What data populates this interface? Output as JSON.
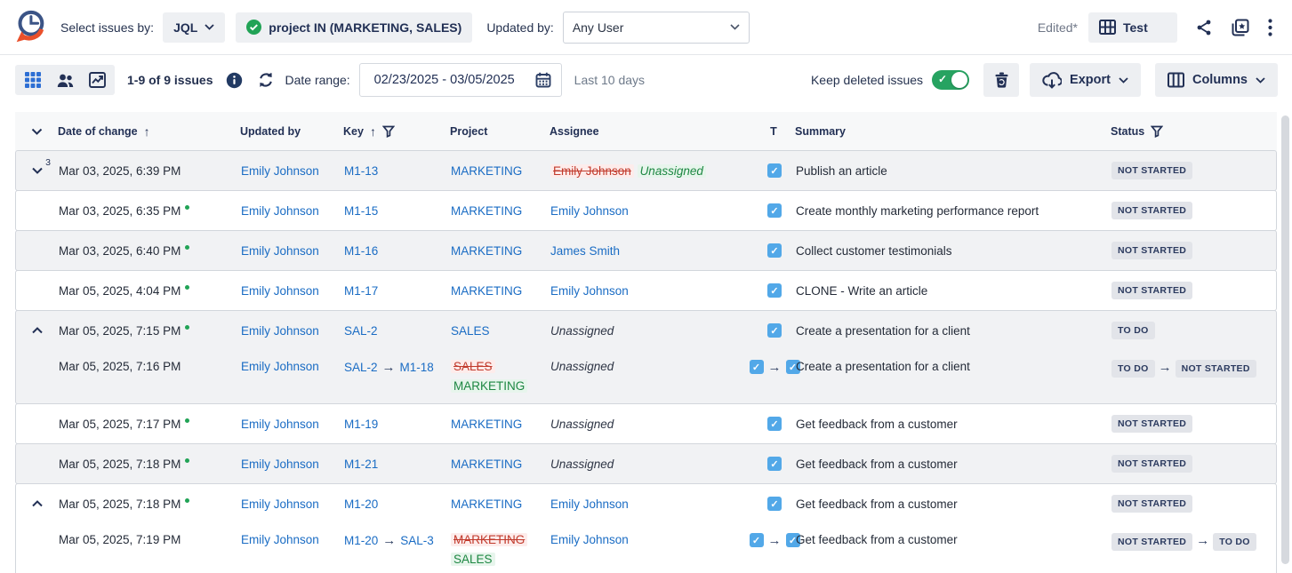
{
  "header": {
    "select_issues_by_label": "Select issues by:",
    "jql_label": "JQL",
    "jql_query": "project IN (MARKETING, SALES)",
    "updated_by_label": "Updated by:",
    "updated_by_value": "Any User",
    "edited_label": "Edited*",
    "report_name": "Test"
  },
  "toolbar": {
    "issues_count": "1-9 of 9 issues",
    "date_range_label": "Date range:",
    "date_range_value": "02/23/2025 - 03/05/2025",
    "date_range_hint": "Last 10 days",
    "keep_deleted_label": "Keep deleted issues",
    "keep_deleted_on": true,
    "export_label": "Export",
    "columns_label": "Columns"
  },
  "colors": {
    "link_blue": "#1a6cc4",
    "added_green": "#1d8742",
    "removed_red": "#c13a2c",
    "toggle_green": "#27a361",
    "task_type_blue": "#52a8e8",
    "navy_text": "#223055"
  },
  "icons": {
    "logo": "clock-with-orange-arrow",
    "task_type": "blue-checkbox",
    "change_arrow": "→",
    "new_change_marker": "green-dot"
  },
  "table": {
    "columns": [
      "Date of change",
      "Updated by",
      "Key",
      "Project",
      "Assignee",
      "T",
      "Summary",
      "Status"
    ],
    "entries": [
      {
        "shade": "gray",
        "rows": [
          {
            "expander": "down",
            "count": "3",
            "date": "Mar 03, 2025, 6:39 PM",
            "dot": false,
            "updated_by": "Emily Johnson",
            "key": {
              "value": "M1-13"
            },
            "project": {
              "value": "MARKETING"
            },
            "assignee": {
              "from": "Emily Johnson",
              "to": "Unassigned"
            },
            "type": {
              "changed": false
            },
            "summary": "Publish an article",
            "status": {
              "value": "NOT STARTED"
            }
          }
        ]
      },
      {
        "shade": "white",
        "rows": [
          {
            "expander": null,
            "date": "Mar 03, 2025, 6:35 PM",
            "dot": true,
            "updated_by": "Emily Johnson",
            "key": {
              "value": "M1-15"
            },
            "project": {
              "value": "MARKETING"
            },
            "assignee": {
              "value": "Emily Johnson",
              "style": "link"
            },
            "type": {
              "changed": false
            },
            "summary": "Create monthly marketing performance report",
            "status": {
              "value": "NOT STARTED"
            }
          }
        ]
      },
      {
        "shade": "gray",
        "rows": [
          {
            "expander": null,
            "date": "Mar 03, 2025, 6:40 PM",
            "dot": true,
            "updated_by": "Emily Johnson",
            "key": {
              "value": "M1-16"
            },
            "project": {
              "value": "MARKETING"
            },
            "assignee": {
              "value": "James Smith",
              "style": "link"
            },
            "type": {
              "changed": false
            },
            "summary": "Collect customer testimonials",
            "status": {
              "value": "NOT STARTED"
            }
          }
        ]
      },
      {
        "shade": "white",
        "rows": [
          {
            "expander": null,
            "date": "Mar 05, 2025, 4:04 PM",
            "dot": true,
            "updated_by": "Emily Johnson",
            "key": {
              "value": "M1-17"
            },
            "project": {
              "value": "MARKETING"
            },
            "assignee": {
              "value": "Emily Johnson",
              "style": "link"
            },
            "type": {
              "changed": false
            },
            "summary": "CLONE - Write an article",
            "status": {
              "value": "NOT STARTED"
            }
          }
        ]
      },
      {
        "shade": "gray",
        "rows": [
          {
            "expander": "up",
            "date": "Mar 05, 2025, 7:15 PM",
            "dot": true,
            "updated_by": "Emily Johnson",
            "key": {
              "value": "SAL-2"
            },
            "project": {
              "value": "SALES"
            },
            "assignee": {
              "value": "Unassigned",
              "style": "plain-italic"
            },
            "type": {
              "changed": false
            },
            "summary": "Create a presentation for a client",
            "status": {
              "value": "TO DO"
            }
          },
          {
            "expander": null,
            "date": "Mar 05, 2025, 7:16 PM",
            "dot": false,
            "updated_by": "Emily Johnson",
            "key": {
              "from": "SAL-2",
              "to": "M1-18"
            },
            "project": {
              "from": "SALES",
              "to": "MARKETING"
            },
            "assignee": {
              "value": "Unassigned",
              "style": "plain-italic"
            },
            "type": {
              "changed": true
            },
            "summary": "Create a presentation for a client",
            "status": {
              "from": "TO DO",
              "to": "NOT STARTED"
            }
          }
        ]
      },
      {
        "shade": "white",
        "rows": [
          {
            "expander": null,
            "date": "Mar 05, 2025, 7:17 PM",
            "dot": true,
            "updated_by": "Emily Johnson",
            "key": {
              "value": "M1-19"
            },
            "project": {
              "value": "MARKETING"
            },
            "assignee": {
              "value": "Unassigned",
              "style": "plain-italic"
            },
            "type": {
              "changed": false
            },
            "summary": "Get feedback from a customer",
            "status": {
              "value": "NOT STARTED"
            }
          }
        ]
      },
      {
        "shade": "gray",
        "rows": [
          {
            "expander": null,
            "date": "Mar 05, 2025, 7:18 PM",
            "dot": true,
            "updated_by": "Emily Johnson",
            "key": {
              "value": "M1-21"
            },
            "project": {
              "value": "MARKETING"
            },
            "assignee": {
              "value": "Unassigned",
              "style": "plain-italic"
            },
            "type": {
              "changed": false
            },
            "summary": "Get feedback from a customer",
            "status": {
              "value": "NOT STARTED"
            }
          }
        ]
      },
      {
        "shade": "white",
        "rows": [
          {
            "expander": "up",
            "date": "Mar 05, 2025, 7:18 PM",
            "dot": true,
            "updated_by": "Emily Johnson",
            "key": {
              "value": "M1-20"
            },
            "project": {
              "value": "MARKETING"
            },
            "assignee": {
              "value": "Emily Johnson",
              "style": "link"
            },
            "type": {
              "changed": false
            },
            "summary": "Get feedback from a customer",
            "status": {
              "value": "NOT STARTED"
            }
          },
          {
            "expander": null,
            "date": "Mar 05, 2025, 7:19 PM",
            "dot": false,
            "updated_by": "Emily Johnson",
            "key": {
              "from": "M1-20",
              "to": "SAL-3"
            },
            "project": {
              "from": "MARKETING",
              "to": "SALES"
            },
            "assignee": {
              "value": "Emily Johnson",
              "style": "link"
            },
            "type": {
              "changed": true
            },
            "summary": "Get feedback from a customer",
            "status": {
              "from": "NOT STARTED",
              "to": "TO DO"
            }
          }
        ]
      }
    ]
  }
}
